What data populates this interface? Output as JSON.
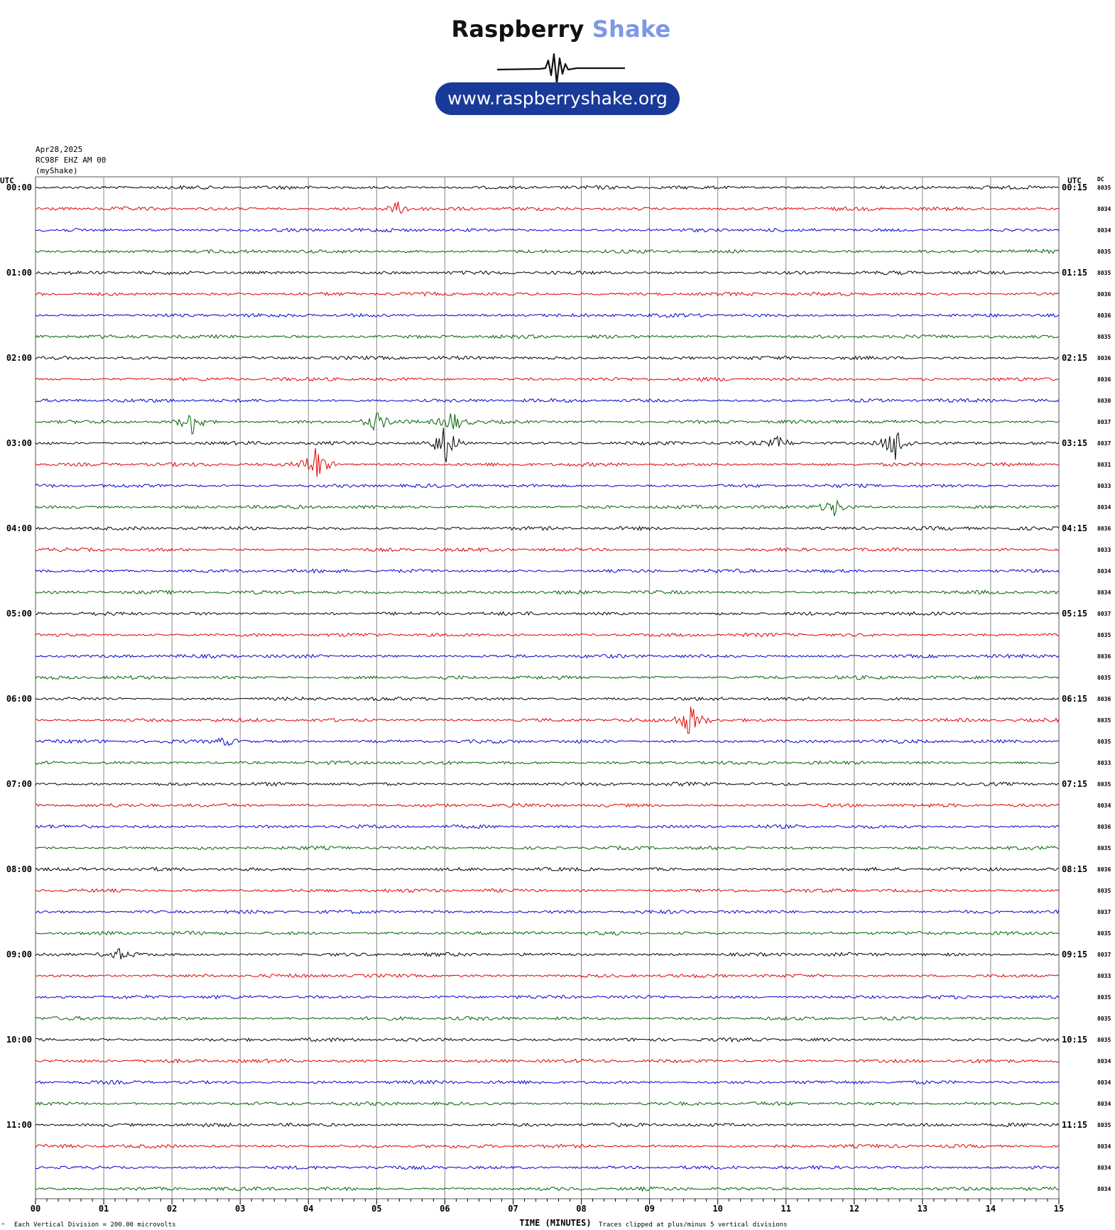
{
  "logo": {
    "name_part1": "Raspberry",
    "name_part2": "Shake",
    "url": "www.raspberryshake.org",
    "icon": "seismogram-pulse-icon",
    "colors": {
      "dark": "#111111",
      "accent": "#7f97e8",
      "pill": "#1a3a9a"
    }
  },
  "header": {
    "date": "Apr28,2025",
    "station": "RC98F EHZ AM 00",
    "network": "(myShake)"
  },
  "footer": {
    "scale_note": "Each Vertical Division =  200.00 microvolts",
    "x_title": "TIME (MINUTES)",
    "clip_note": "Traces clipped at plus/minus 5 vertical divisions",
    "corner_mark": "^"
  },
  "chart_data": {
    "type": "line",
    "title": "",
    "left_axis_header": "UTC",
    "right_axis_header": "UTC",
    "dc_header": "DC",
    "xlabel": "TIME (MINUTES)",
    "xlim": [
      0,
      15
    ],
    "x_ticks": [
      "00",
      "01",
      "02",
      "03",
      "04",
      "05",
      "06",
      "07",
      "08",
      "09",
      "10",
      "11",
      "12",
      "13",
      "14",
      "15"
    ],
    "grid": true,
    "trace_colors": [
      "#000000",
      "#e00000",
      "#0000d0",
      "#006000"
    ],
    "traces": [
      {
        "start": "00:00",
        "dc": "8035",
        "left_label": "00:00",
        "right_label": "00:15"
      },
      {
        "start": "00:15",
        "dc": "8034"
      },
      {
        "start": "00:30",
        "dc": "8034"
      },
      {
        "start": "00:45",
        "dc": "8035"
      },
      {
        "start": "01:00",
        "dc": "8035",
        "left_label": "01:00",
        "right_label": "01:15"
      },
      {
        "start": "01:15",
        "dc": "8036"
      },
      {
        "start": "01:30",
        "dc": "8036"
      },
      {
        "start": "01:45",
        "dc": "8035"
      },
      {
        "start": "02:00",
        "dc": "8036",
        "left_label": "02:00",
        "right_label": "02:15"
      },
      {
        "start": "02:15",
        "dc": "8036"
      },
      {
        "start": "02:30",
        "dc": "8030"
      },
      {
        "start": "02:45",
        "dc": "8037"
      },
      {
        "start": "03:00",
        "dc": "8037",
        "left_label": "03:00",
        "right_label": "03:15"
      },
      {
        "start": "03:15",
        "dc": "8031"
      },
      {
        "start": "03:30",
        "dc": "8033"
      },
      {
        "start": "03:45",
        "dc": "8034"
      },
      {
        "start": "04:00",
        "dc": "8036",
        "left_label": "04:00",
        "right_label": "04:15"
      },
      {
        "start": "04:15",
        "dc": "8033"
      },
      {
        "start": "04:30",
        "dc": "8034"
      },
      {
        "start": "04:45",
        "dc": "8034"
      },
      {
        "start": "05:00",
        "dc": "8037",
        "left_label": "05:00",
        "right_label": "05:15"
      },
      {
        "start": "05:15",
        "dc": "8035"
      },
      {
        "start": "05:30",
        "dc": "8036"
      },
      {
        "start": "05:45",
        "dc": "8035"
      },
      {
        "start": "06:00",
        "dc": "8036",
        "left_label": "06:00",
        "right_label": "06:15"
      },
      {
        "start": "06:15",
        "dc": "8035"
      },
      {
        "start": "06:30",
        "dc": "8035"
      },
      {
        "start": "06:45",
        "dc": "8033"
      },
      {
        "start": "07:00",
        "dc": "8035",
        "left_label": "07:00",
        "right_label": "07:15"
      },
      {
        "start": "07:15",
        "dc": "8034"
      },
      {
        "start": "07:30",
        "dc": "8036"
      },
      {
        "start": "07:45",
        "dc": "8035"
      },
      {
        "start": "08:00",
        "dc": "8036",
        "left_label": "08:00",
        "right_label": "08:15"
      },
      {
        "start": "08:15",
        "dc": "8035"
      },
      {
        "start": "08:30",
        "dc": "8037"
      },
      {
        "start": "08:45",
        "dc": "8035"
      },
      {
        "start": "09:00",
        "dc": "8037",
        "left_label": "09:00",
        "right_label": "09:15"
      },
      {
        "start": "09:15",
        "dc": "8033"
      },
      {
        "start": "09:30",
        "dc": "8035"
      },
      {
        "start": "09:45",
        "dc": "8035"
      },
      {
        "start": "10:00",
        "dc": "8035",
        "left_label": "10:00",
        "right_label": "10:15"
      },
      {
        "start": "10:15",
        "dc": "8034"
      },
      {
        "start": "10:30",
        "dc": "8034"
      },
      {
        "start": "10:45",
        "dc": "8034"
      },
      {
        "start": "11:00",
        "dc": "8035",
        "left_label": "11:00",
        "right_label": "11:15"
      },
      {
        "start": "11:15",
        "dc": "8034"
      },
      {
        "start": "11:30",
        "dc": "8034"
      },
      {
        "start": "11:45",
        "dc": "8034"
      }
    ],
    "events": [
      {
        "trace": 1,
        "minute": 5.3,
        "amplitude": 0.35
      },
      {
        "trace": 11,
        "minute": 2.3,
        "amplitude": 0.7
      },
      {
        "trace": 11,
        "minute": 5.0,
        "amplitude": 0.5
      },
      {
        "trace": 11,
        "minute": 6.1,
        "amplitude": 0.6
      },
      {
        "trace": 12,
        "minute": 6.0,
        "amplitude": 1.1
      },
      {
        "trace": 12,
        "minute": 10.9,
        "amplitude": 0.35
      },
      {
        "trace": 12,
        "minute": 12.6,
        "amplitude": 1.0
      },
      {
        "trace": 13,
        "minute": 4.1,
        "amplitude": 1.0
      },
      {
        "trace": 15,
        "minute": 11.7,
        "amplitude": 0.5
      },
      {
        "trace": 25,
        "minute": 9.6,
        "amplitude": 0.9
      },
      {
        "trace": 26,
        "minute": 2.8,
        "amplitude": 0.25
      },
      {
        "trace": 36,
        "minute": 1.2,
        "amplitude": 0.3
      }
    ]
  }
}
